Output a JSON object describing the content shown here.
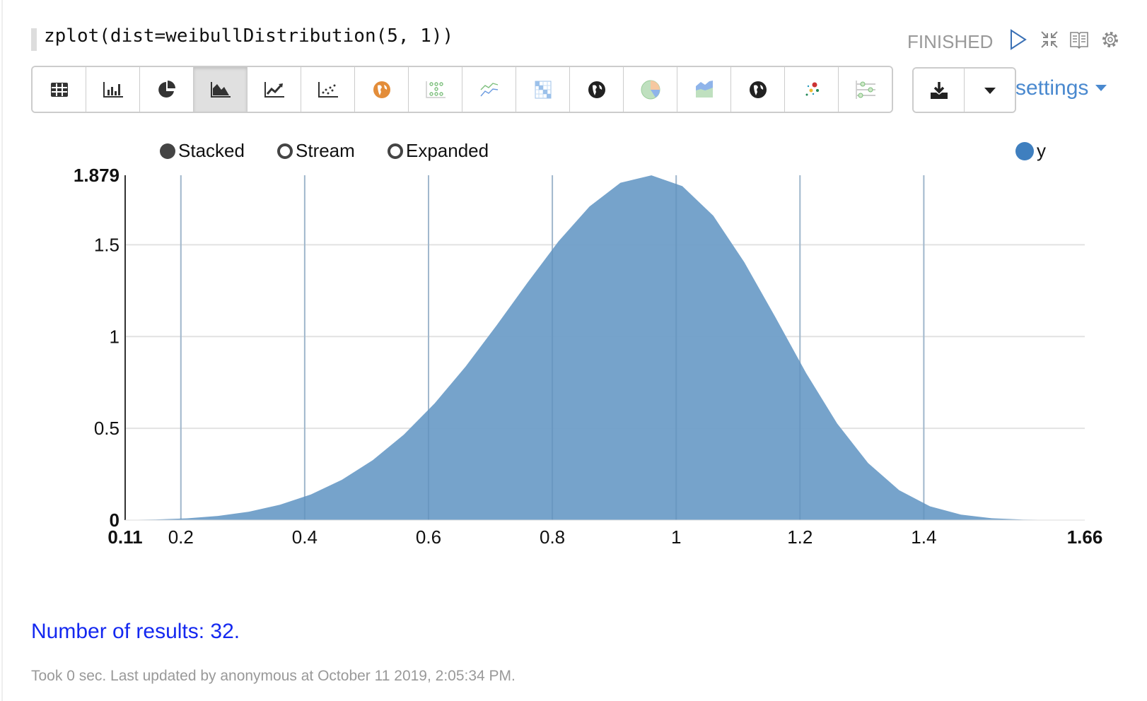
{
  "paragraph": {
    "code": "zplot(dist=weibullDistribution(5, 1))",
    "status": "FINISHED",
    "controls": [
      "play-icon",
      "collapse-icon",
      "book-icon",
      "gear-icon"
    ]
  },
  "toolbar": {
    "buttons": [
      "table",
      "bar-chart",
      "pie-chart",
      "area-chart",
      "line-chart",
      "scatter-chart",
      "map",
      "heatmap",
      "multi-line",
      "matrix",
      "globe",
      "pie-color",
      "stacked-area",
      "globe-2",
      "bubble",
      "timeline"
    ],
    "active": "area-chart"
  },
  "download": {
    "icon": "download-icon",
    "dropdown": "caret-down-icon"
  },
  "settings": {
    "label": "settings"
  },
  "chart_controls": {
    "modes": [
      {
        "label": "Stacked",
        "selected": true
      },
      {
        "label": "Stream",
        "selected": false
      },
      {
        "label": "Expanded",
        "selected": false
      }
    ],
    "legend": {
      "label": "y",
      "color": "#3f7fbf"
    }
  },
  "chart_data": {
    "type": "area",
    "x": [
      0.11,
      0.16,
      0.21,
      0.26,
      0.31,
      0.36,
      0.41,
      0.46,
      0.51,
      0.56,
      0.61,
      0.66,
      0.71,
      0.76,
      0.81,
      0.86,
      0.91,
      0.96,
      1.01,
      1.06,
      1.11,
      1.16,
      1.21,
      1.26,
      1.31,
      1.36,
      1.41,
      1.46,
      1.51,
      1.56,
      1.61,
      1.66
    ],
    "series": [
      {
        "name": "y",
        "color": "#6f9ec8",
        "values": [
          0.0007,
          0.0033,
          0.0097,
          0.0228,
          0.046,
          0.0835,
          0.1397,
          0.2193,
          0.3268,
          0.4654,
          0.6362,
          0.8371,
          1.0611,
          1.2947,
          1.519,
          1.7089,
          1.8381,
          1.8787,
          1.8196,
          1.6585,
          1.4053,
          1.1071,
          0.8009,
          0.5263,
          0.3109,
          0.1631,
          0.0751,
          0.0298,
          0.0101,
          0.0029,
          0.0007,
          0.0001
        ]
      }
    ],
    "xlim": [
      0.11,
      1.66
    ],
    "ylim": [
      0,
      1.879
    ],
    "xticks": [
      "0.11",
      "0.2",
      "0.4",
      "0.6",
      "0.8",
      "1",
      "1.2",
      "1.4",
      "1.66"
    ],
    "xtick_values": [
      0.11,
      0.2,
      0.4,
      0.6,
      0.8,
      1,
      1.2,
      1.4,
      1.66
    ],
    "yticks": [
      "0",
      "0.5",
      "1",
      "1.5",
      "1.879"
    ],
    "ytick_values": [
      0,
      0.5,
      1,
      1.5,
      1.879
    ],
    "grid": true,
    "legend": "top-right"
  },
  "footer": {
    "results": "Number of results: 32.",
    "meta": "Took 0 sec. Last updated by anonymous at October 11 2019, 2:05:34 PM."
  }
}
